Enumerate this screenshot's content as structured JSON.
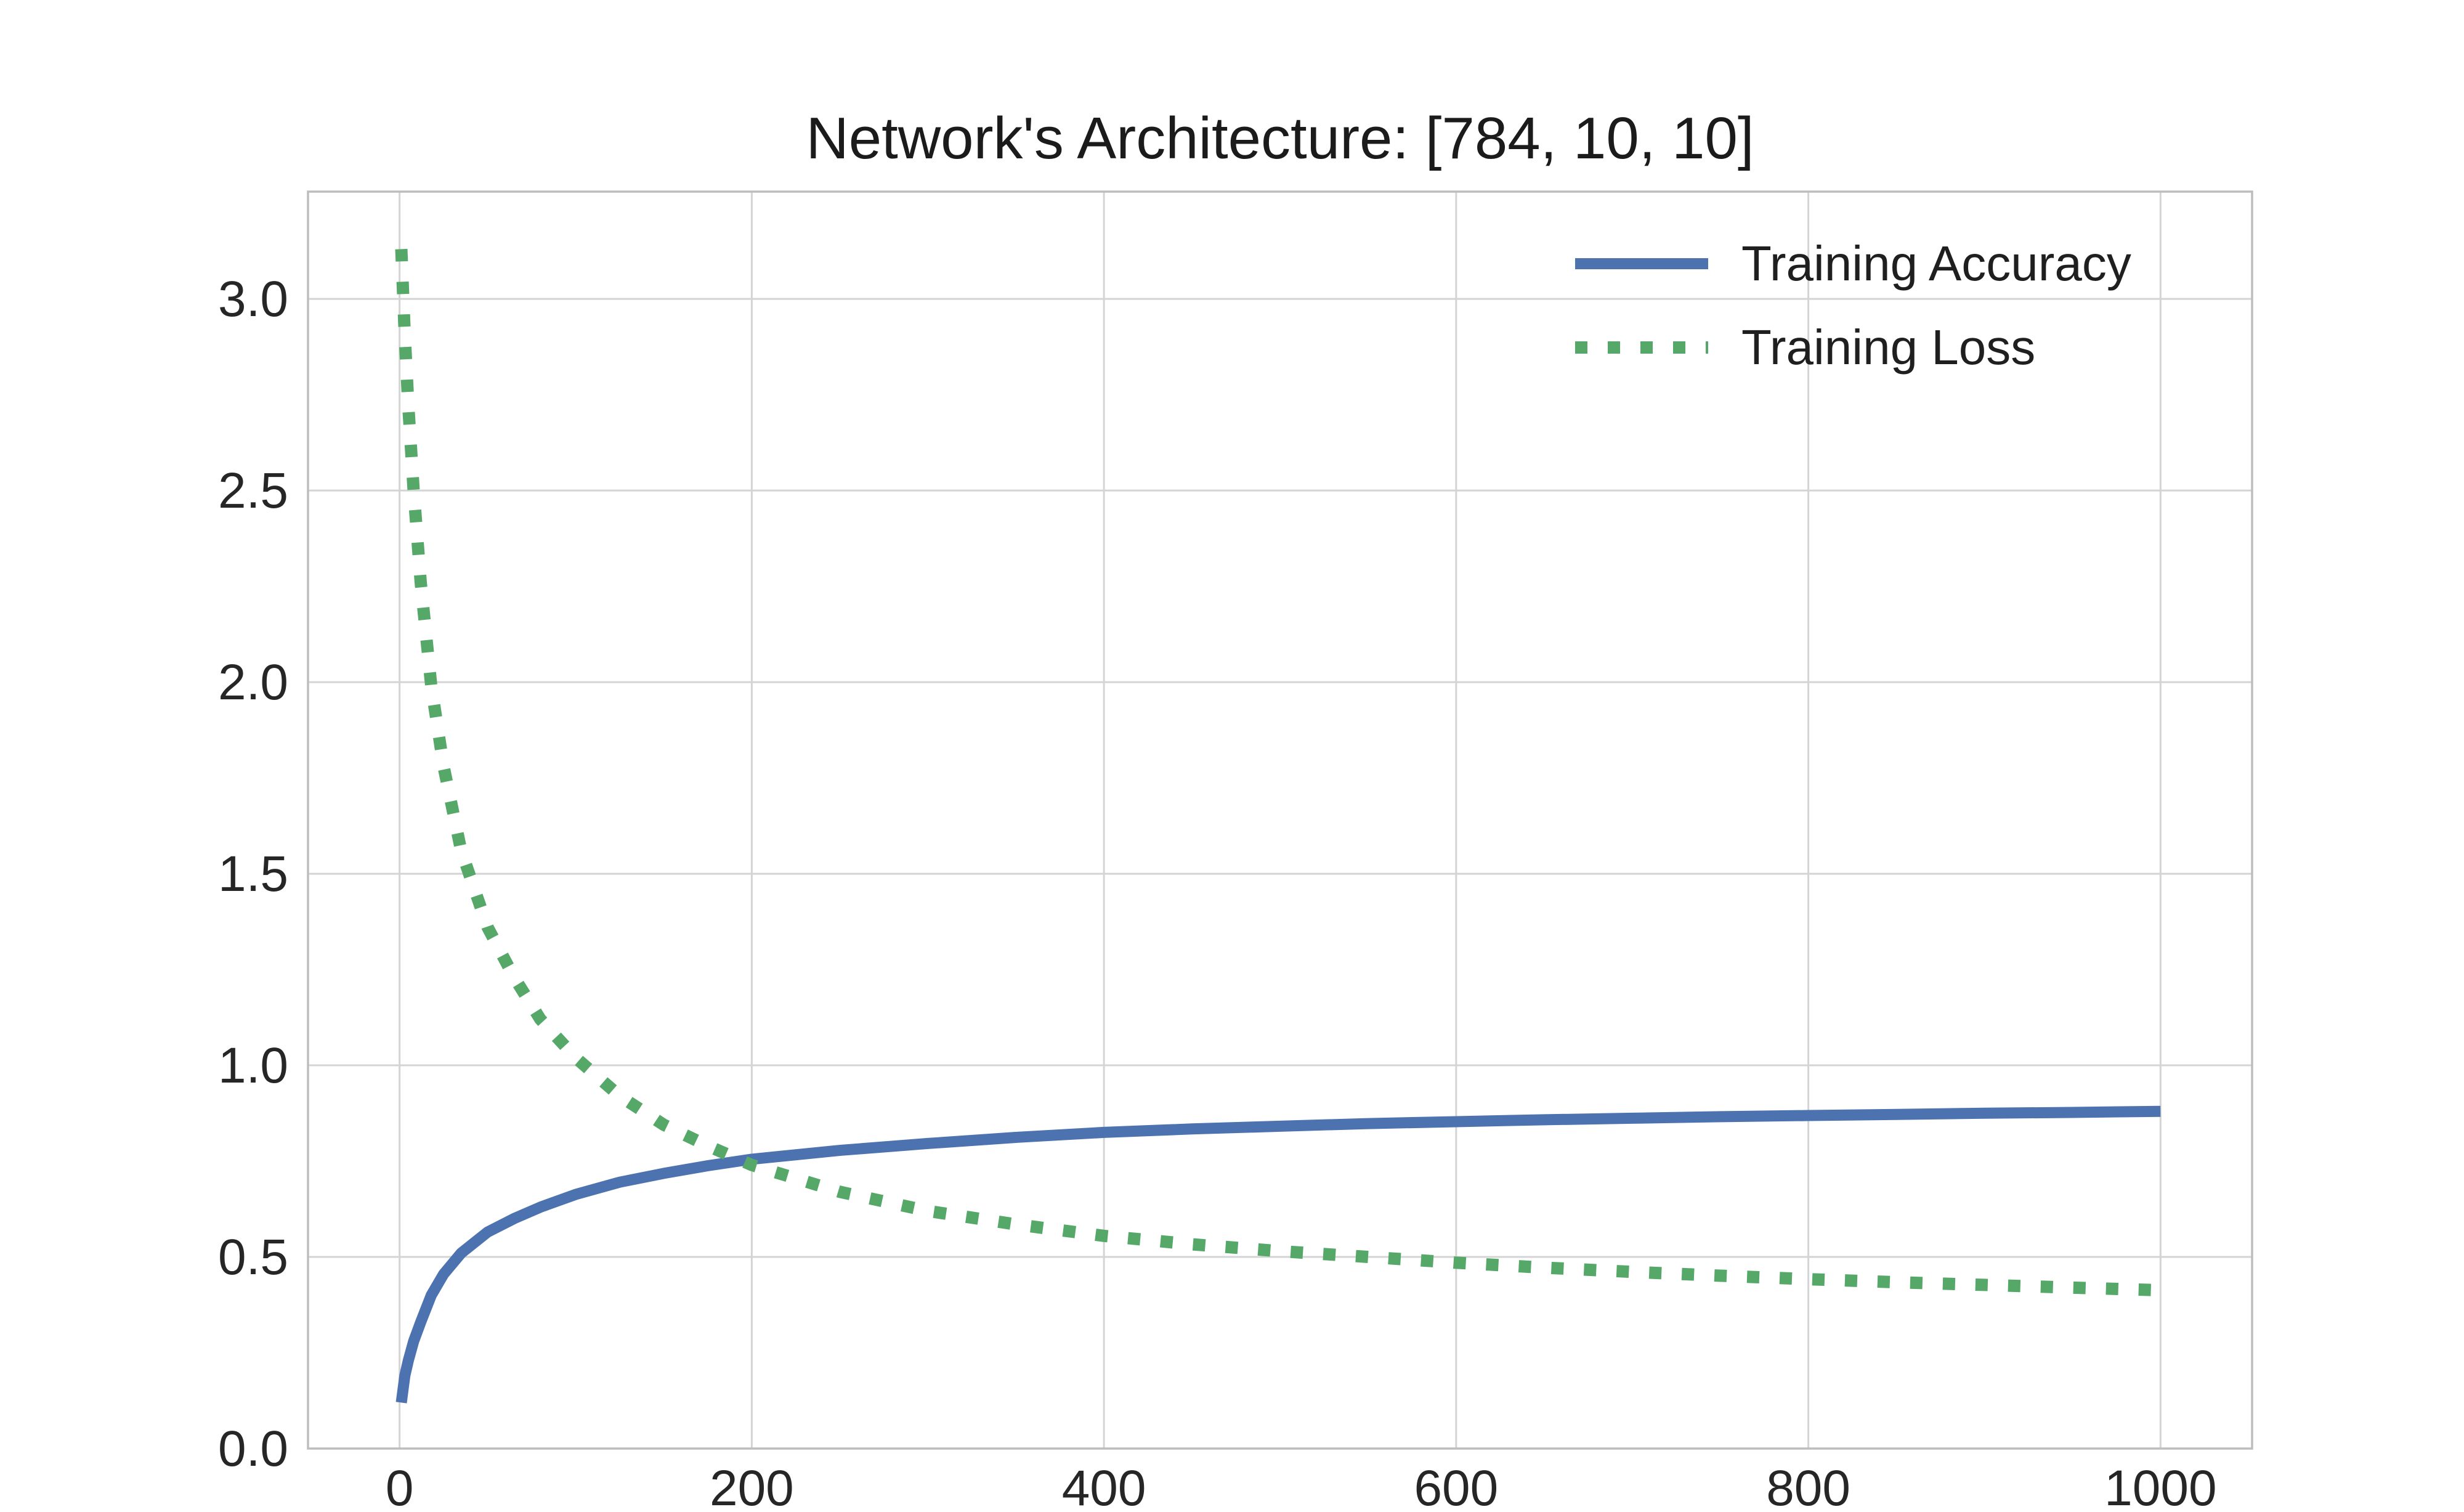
{
  "chart_data": {
    "type": "line",
    "title": "Network's Architecture: [784, 10, 10]",
    "xlabel": "",
    "ylabel": "",
    "x": [
      1,
      3,
      5,
      8,
      12,
      18,
      25,
      35,
      50,
      65,
      80,
      100,
      125,
      150,
      175,
      200,
      250,
      300,
      350,
      400,
      450,
      500,
      550,
      600,
      650,
      700,
      750,
      800,
      850,
      900,
      950,
      1000
    ],
    "series": [
      {
        "name": "Training Accuracy",
        "color": "#4C72B0",
        "line_style": "solid",
        "line_width": 18,
        "values": [
          0.12,
          0.19,
          0.23,
          0.28,
          0.33,
          0.4,
          0.455,
          0.51,
          0.565,
          0.6,
          0.63,
          0.663,
          0.695,
          0.718,
          0.738,
          0.755,
          0.778,
          0.796,
          0.812,
          0.825,
          0.834,
          0.841,
          0.848,
          0.853,
          0.858,
          0.862,
          0.866,
          0.869,
          0.872,
          0.875,
          0.877,
          0.88
        ]
      },
      {
        "name": "Training Loss",
        "color": "#55A868",
        "line_style": "dotted",
        "line_width": 20,
        "values": [
          3.13,
          2.9,
          2.72,
          2.5,
          2.26,
          1.99,
          1.78,
          1.56,
          1.36,
          1.23,
          1.12,
          1.02,
          0.92,
          0.845,
          0.79,
          0.74,
          0.67,
          0.62,
          0.585,
          0.555,
          0.533,
          0.515,
          0.5,
          0.485,
          0.472,
          0.461,
          0.451,
          0.442,
          0.434,
          0.427,
          0.42,
          0.413
        ]
      }
    ],
    "xlim": [
      -52,
      1052
    ],
    "ylim": [
      0,
      3.28
    ],
    "xticks": {
      "values": [
        0,
        200,
        400,
        600,
        800,
        1000
      ],
      "labels": [
        "0",
        "200",
        "400",
        "600",
        "800",
        "1000"
      ]
    },
    "yticks": {
      "values": [
        0,
        0.5,
        1.0,
        1.5,
        2.0,
        2.5,
        3.0
      ],
      "labels": [
        "0.0",
        "0.5",
        "1.0",
        "1.5",
        "2.0",
        "2.5",
        "3.0"
      ]
    },
    "grid": true,
    "legend": {
      "position": "upper right"
    },
    "colors": {
      "background": "#ffffff",
      "grid": "#d4d4d4",
      "spine": "#bdbdbd",
      "tick_label": "#262626"
    }
  }
}
